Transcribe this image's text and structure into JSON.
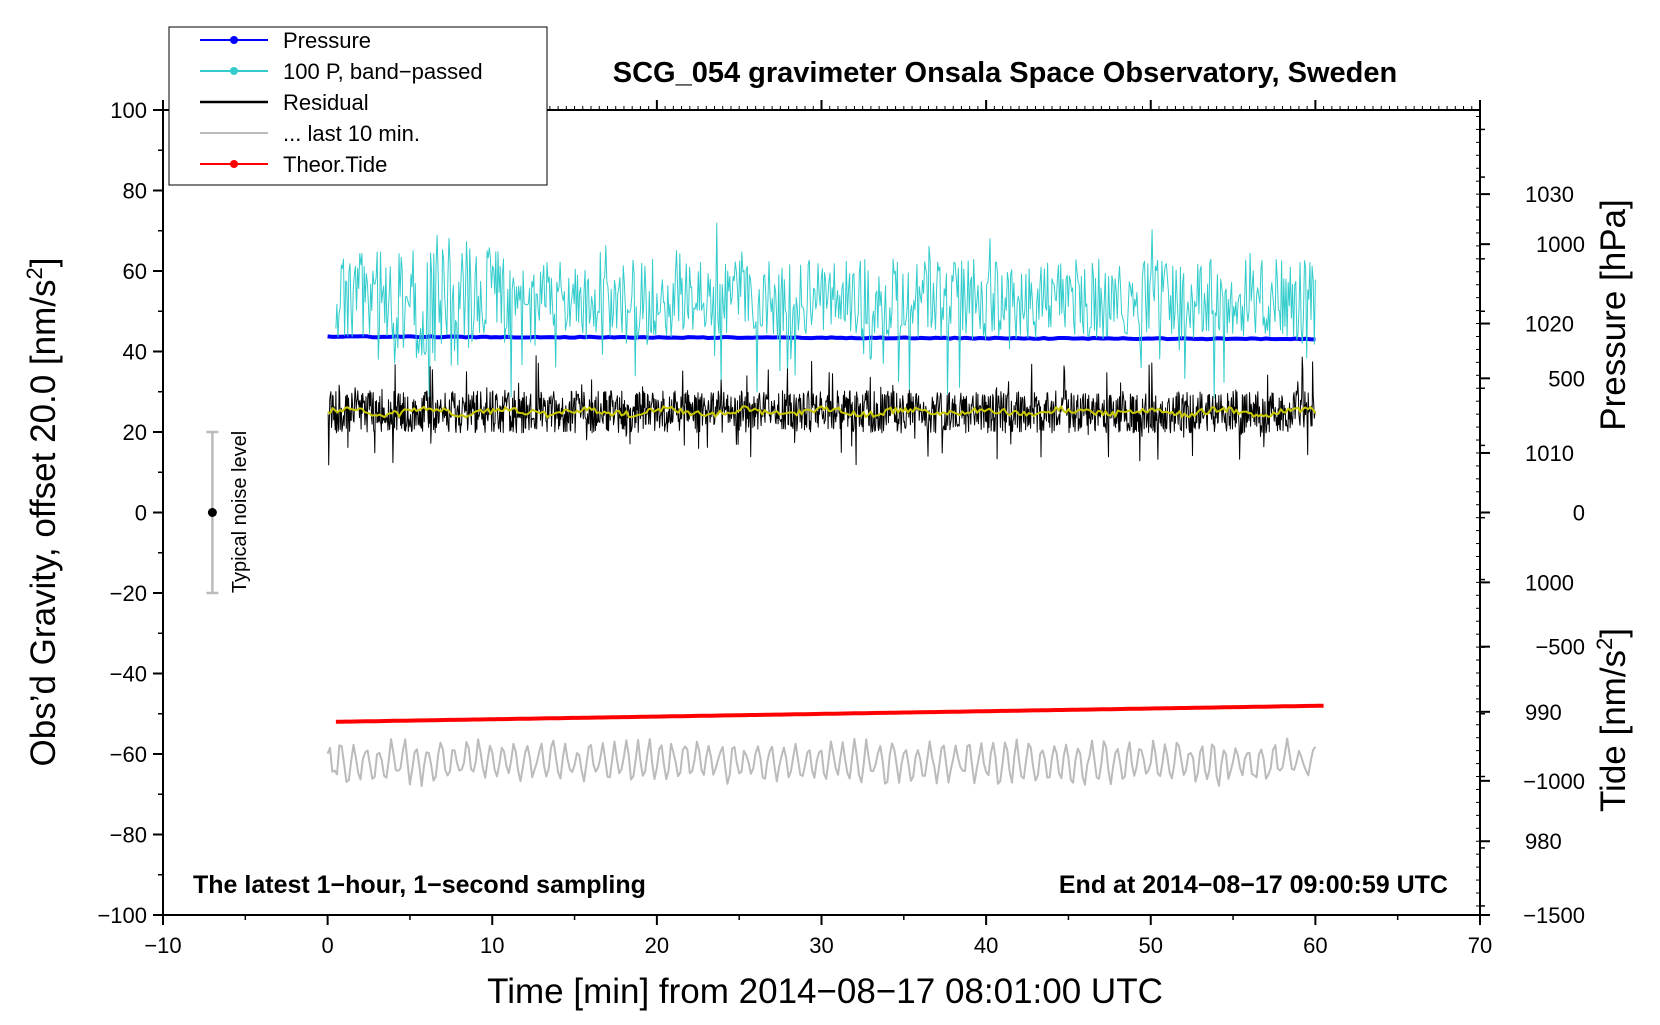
{
  "chart_data": {
    "type": "line",
    "title": "SCG_054 gravimeter Onsala Space Observatory, Sweden",
    "xlabel": "Time [min] from 2014−08−17 08:01:00 UTC",
    "ylabel_left": "Obs’d Gravity, offset 20.0 [nm/s",
    "ylabel_left_sup": "2",
    "ylabel_left_end": "]",
    "ylabel_right_top": "Pressure [hPa]",
    "ylabel_right_bottom": "Tide [nm/s",
    "ylabel_right_bottom_sup": "2",
    "ylabel_right_bottom_end": "]",
    "xlim": [
      -10,
      70
    ],
    "ylim_left": [
      -100,
      100
    ],
    "ylim_pressure": [
      974.3,
      1036.5
    ],
    "ylim_tide": [
      -1500,
      1500
    ],
    "x_ticks": [
      "−10",
      "0",
      "10",
      "20",
      "30",
      "40",
      "50",
      "60",
      "70"
    ],
    "x_tick_values": [
      -10,
      0,
      10,
      20,
      30,
      40,
      50,
      60,
      70
    ],
    "y_left_ticks": [
      "100",
      "80",
      "60",
      "40",
      "20",
      "0",
      "−20",
      "−40",
      "−60",
      "−80",
      "−100"
    ],
    "y_left_tick_values": [
      100,
      80,
      60,
      40,
      20,
      0,
      -20,
      -40,
      -60,
      -80,
      -100
    ],
    "y_pressure_ticks": [
      "1030",
      "1020",
      "1010",
      "1000",
      "990",
      "980"
    ],
    "y_pressure_tick_values": [
      1030,
      1020,
      1010,
      1000,
      990,
      980
    ],
    "y_tide_ticks": [
      "1000",
      "500",
      "0",
      "−500",
      "−1000",
      "−1500"
    ],
    "y_tide_tick_values": [
      1000,
      500,
      0,
      -500,
      -1000,
      -1500
    ],
    "legend_position": "top-left",
    "legend": [
      {
        "label": "Pressure",
        "color": "#0000ff",
        "marker": true
      },
      {
        "label": "100 P, band−passed",
        "color": "#33cccc",
        "marker": true
      },
      {
        "label": "Residual",
        "color": "#000000",
        "marker": false
      },
      {
        "label": "... last 10 min.",
        "color": "#bbbbbb",
        "marker": false
      },
      {
        "label": "Theor.Tide",
        "color": "#ff0000",
        "marker": true
      }
    ],
    "annotations": {
      "bottom_left": "The latest 1−hour, 1−second sampling",
      "bottom_right": "End at 2014−08−17 09:00:59 UTC",
      "noise_label": "Typical noise level"
    },
    "noise_bar": {
      "x": -7,
      "center": 0,
      "low": -20,
      "high": 20
    },
    "series": [
      {
        "name": "Pressure",
        "color": "#0000ff",
        "axis": "left",
        "x_range": [
          0,
          60
        ],
        "y_start": 43.7,
        "y_end": 43.1
      },
      {
        "name": "100 P, band−passed",
        "color": "#33cccc",
        "axis": "left",
        "x_range": [
          0.5,
          60
        ],
        "y_mean": 53,
        "y_amplitude": 10
      },
      {
        "name": "Residual",
        "color": "#000000",
        "axis": "left",
        "x_range": [
          0,
          60
        ],
        "y_mean": 25,
        "y_amplitude": 7
      },
      {
        "name": "Residual smoothed",
        "color": "#c8c800",
        "axis": "left",
        "x_range": [
          0,
          60
        ],
        "y_mean": 25,
        "y_amplitude": 0.8
      },
      {
        "name": "... last 10 min.",
        "color": "#bbbbbb",
        "axis": "left",
        "x_range": [
          0,
          60
        ],
        "y_mean": -62,
        "y_amplitude": 5
      },
      {
        "name": "Theor.Tide",
        "color": "#ff0000",
        "axis": "left",
        "x_range": [
          0.5,
          60.5
        ],
        "y_start": -52,
        "y_end": -48
      }
    ]
  }
}
